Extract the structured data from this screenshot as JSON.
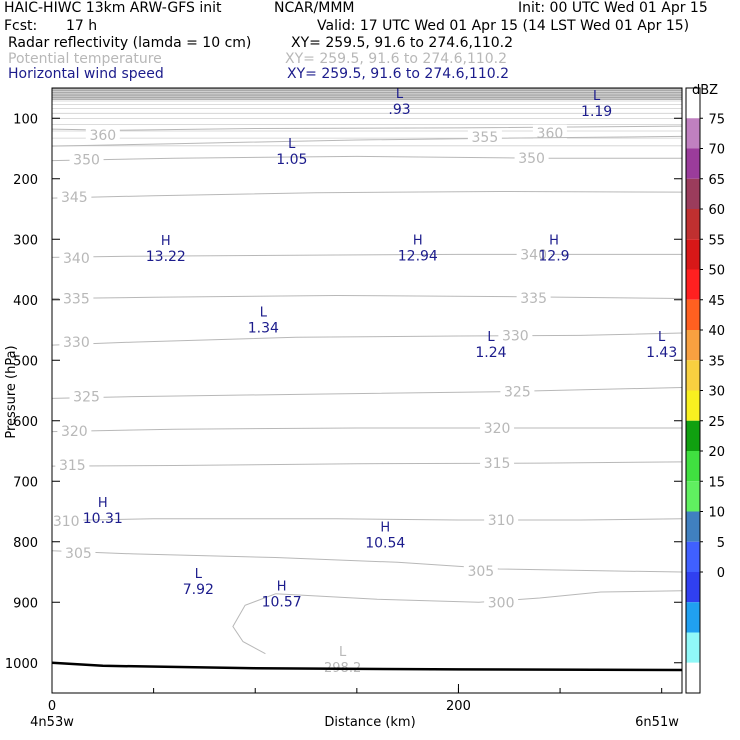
{
  "header": {
    "title_left": "HAIC-HIWC 13km ARW-GFS init",
    "org": "NCAR/MMM",
    "init": "Init: 00 UTC Wed 01 Apr 15",
    "fcst_label": "Fcst:",
    "fcst_value": "17 h",
    "valid": "Valid: 17 UTC Wed 01 Apr 15 (14 LST Wed 01 Apr 15)",
    "fields": [
      {
        "name": "Radar reflectivity (lamda = 10 cm)",
        "xy": "XY= 259.5, 91.6 to 274.6,110.2",
        "color": "#000000"
      },
      {
        "name": "Potential temperature",
        "xy": "XY= 259.5, 91.6 to 274.6,110.2",
        "color": "#b8b8b8"
      },
      {
        "name": "Horizontal wind speed",
        "xy": "XY= 259.5, 91.6 to 274.6,110.2",
        "color": "#1c1c8c"
      }
    ]
  },
  "chart_data": {
    "type": "line",
    "xlabel": "Distance (km)",
    "ylabel": "Pressure (hPa)",
    "xlim": [
      0,
      310
    ],
    "ylim": [
      1050,
      50
    ],
    "x_ticks": [
      0,
      200
    ],
    "y_ticks": [
      100,
      200,
      300,
      400,
      500,
      600,
      700,
      800,
      900,
      1000
    ],
    "x_endpoints": {
      "left": "4n53w",
      "right": "6n51w"
    },
    "series": [
      {
        "name": "Potential temperature",
        "color": "#b8b8b8",
        "contours": [
          {
            "theta": 360,
            "points": [
              [
                0,
                118
              ],
              [
                30,
                120
              ],
              [
                100,
                117
              ],
              [
                200,
                116
              ],
              [
                310,
                113
              ]
            ],
            "labels": [
              [
                25,
                128
              ],
              [
                245,
                124
              ]
            ]
          },
          {
            "theta": 355,
            "points": [
              [
                0,
                146
              ],
              [
                60,
                142
              ],
              [
                150,
                136
              ],
              [
                220,
                133
              ],
              [
                310,
                130
              ]
            ],
            "labels": [
              [
                213,
                131
              ]
            ]
          },
          {
            "theta": 350,
            "points": [
              [
                0,
                170
              ],
              [
                60,
                166
              ],
              [
                150,
                163
              ],
              [
                240,
                166
              ],
              [
                310,
                166
              ]
            ],
            "labels": [
              [
                17,
                168
              ],
              [
                236,
                166
              ]
            ]
          },
          {
            "theta": 345,
            "points": [
              [
                0,
                232
              ],
              [
                50,
                228
              ],
              [
                130,
                223
              ],
              [
                220,
                221
              ],
              [
                310,
                222
              ]
            ],
            "labels": [
              [
                11,
                230
              ]
            ]
          },
          {
            "theta": 340,
            "points": [
              [
                0,
                330
              ],
              [
                40,
                328
              ],
              [
                140,
                326
              ],
              [
                200,
                325
              ],
              [
                240,
                325
              ],
              [
                310,
                325
              ]
            ],
            "labels": [
              [
                12,
                331
              ],
              [
                237,
                325
              ]
            ]
          },
          {
            "theta": 335,
            "points": [
              [
                0,
                398
              ],
              [
                50,
                396
              ],
              [
                140,
                393
              ],
              [
                230,
                395
              ],
              [
                310,
                398
              ]
            ],
            "labels": [
              [
                12,
                398
              ],
              [
                237,
                397
              ]
            ]
          },
          {
            "theta": 330,
            "points": [
              [
                0,
                475
              ],
              [
                40,
                470
              ],
              [
                120,
                462
              ],
              [
                200,
                460
              ],
              [
                260,
                459
              ],
              [
                310,
                455
              ]
            ],
            "labels": [
              [
                12,
                470
              ],
              [
                228,
                459
              ]
            ]
          },
          {
            "theta": 325,
            "points": [
              [
                0,
                563
              ],
              [
                40,
                560
              ],
              [
                130,
                556
              ],
              [
                220,
                552
              ],
              [
                310,
                545
              ]
            ],
            "labels": [
              [
                17,
                560
              ],
              [
                229,
                552
              ]
            ]
          },
          {
            "theta": 320,
            "points": [
              [
                0,
                618
              ],
              [
                60,
                614
              ],
              [
                150,
                612
              ],
              [
                240,
                612
              ],
              [
                310,
                612
              ]
            ],
            "labels": [
              [
                11,
                617
              ],
              [
                219,
                612
              ]
            ]
          },
          {
            "theta": 315,
            "points": [
              [
                0,
                675
              ],
              [
                60,
                674
              ],
              [
                150,
                671
              ],
              [
                240,
                670
              ],
              [
                310,
                668
              ]
            ],
            "labels": [
              [
                10,
                673
              ],
              [
                219,
                670
              ]
            ]
          },
          {
            "theta": 310,
            "points": [
              [
                0,
                765
              ],
              [
                50,
                762
              ],
              [
                140,
                762
              ],
              [
                200,
                764
              ],
              [
                260,
                764
              ],
              [
                310,
                762
              ]
            ],
            "labels": [
              [
                7,
                766
              ],
              [
                221,
                764
              ]
            ]
          },
          {
            "theta": 305,
            "points": [
              [
                0,
                815
              ],
              [
                40,
                820
              ],
              [
                110,
                826
              ],
              [
                170,
                834
              ],
              [
                220,
                845
              ],
              [
                270,
                848
              ],
              [
                310,
                850
              ]
            ],
            "labels": [
              [
                13,
                819
              ],
              [
                211,
                848
              ]
            ]
          },
          {
            "theta": 300,
            "points": [
              [
                110,
                886
              ],
              [
                95,
                905
              ],
              [
                89,
                940
              ],
              [
                94,
                965
              ],
              [
                105,
                985
              ]
            ],
            "labels": []
          },
          {
            "theta": 300,
            "points": [
              [
                110,
                886
              ],
              [
                160,
                895
              ],
              [
                210,
                900
              ],
              [
                240,
                893
              ],
              [
                270,
                883
              ],
              [
                310,
                881
              ]
            ],
            "labels": [
              [
                221,
                900
              ]
            ]
          }
        ]
      },
      {
        "name": "Horizontal wind speed",
        "color": "#1c1c8c",
        "extrema": [
          {
            "type": "L",
            "value": "L",
            "number": ".93",
            "x": 171,
            "p": 80
          },
          {
            "type": "L",
            "value": "L",
            "number": "1.19",
            "x": 268,
            "p": 83
          },
          {
            "type": "L",
            "value": "L",
            "number": "1.05",
            "x": 118,
            "p": 162
          },
          {
            "type": "H",
            "value": "H",
            "number": "13.22",
            "x": 56,
            "p": 323
          },
          {
            "type": "H",
            "value": "H",
            "number": "12.94",
            "x": 180,
            "p": 322
          },
          {
            "type": "H",
            "value": "H",
            "number": "12.9",
            "x": 247,
            "p": 322
          },
          {
            "type": "L",
            "value": "L",
            "number": "1.34",
            "x": 104,
            "p": 441
          },
          {
            "type": "L",
            "value": "L",
            "number": "1.24",
            "x": 216,
            "p": 481
          },
          {
            "type": "L",
            "value": "L",
            "number": "1.43",
            "x": 300,
            "p": 481
          },
          {
            "type": "H",
            "value": "H",
            "number": "10.31",
            "x": 25,
            "p": 756
          },
          {
            "type": "H",
            "value": "H",
            "number": "10.54",
            "x": 164,
            "p": 796
          },
          {
            "type": "L",
            "value": "L",
            "number": "7.92",
            "x": 72,
            "p": 873
          },
          {
            "type": "H",
            "value": "H",
            "number": "10.57",
            "x": 113,
            "p": 894
          }
        ]
      },
      {
        "name": "Terrain",
        "color": "#000000",
        "points": [
          [
            0,
            1000
          ],
          [
            25,
            1005
          ],
          [
            100,
            1009
          ],
          [
            200,
            1011
          ],
          [
            310,
            1012
          ]
        ]
      }
    ],
    "theta_minimum": {
      "label": "L",
      "number": "298.2",
      "x": 143,
      "p": 1000
    },
    "colorbar": {
      "unit": "dBZ",
      "ticks": [
        "75",
        "70",
        "65",
        "60",
        "55",
        "50",
        "45",
        "40",
        "35",
        "30",
        "25",
        "20",
        "15",
        "10",
        "5",
        "0"
      ],
      "colors": [
        "#ffffff",
        "#c080c0",
        "#9b3c9b",
        "#9b3c5c",
        "#c03030",
        "#d81818",
        "#ff2020",
        "#ff6020",
        "#f8a040",
        "#f8d040",
        "#f8f020",
        "#10a010",
        "#40e040",
        "#60f060",
        "#4080c0",
        "#4060ff",
        "#3040f0",
        "#20a0f0",
        "#90f8f8",
        "#ffffff"
      ]
    }
  }
}
